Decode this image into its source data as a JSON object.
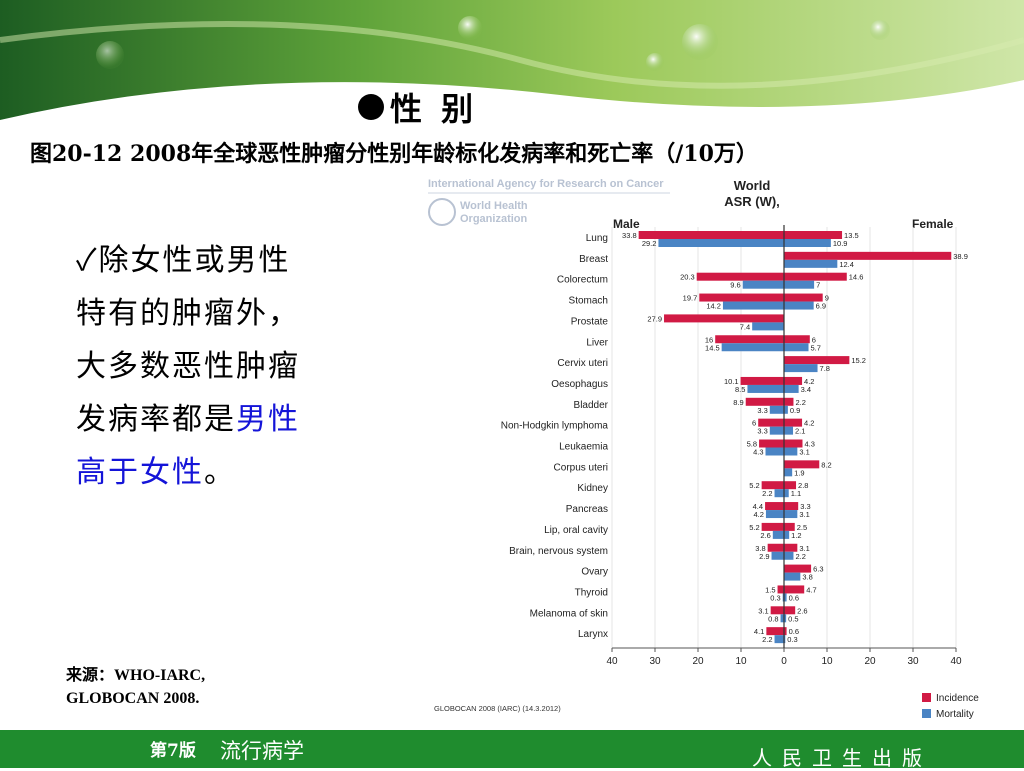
{
  "header": {
    "heading": "性 别",
    "figure_title": "图20-12 2008年全球恶性肿瘤分性别年龄标化发病率和死亡率（/10万）"
  },
  "bullet": {
    "check": "✓",
    "text_plain": "除女性或男性特有的肿瘤外，大多数恶性肿瘤发病率都是",
    "text_highlight": "男性高于女性",
    "text_end": "。"
  },
  "source": {
    "line1": "来源：WHO-IARC,",
    "line2": "GLOBOCAN 2008."
  },
  "footer": {
    "edition": "第7版",
    "subject": "流行病学",
    "publisher": "人民卫生出版"
  },
  "colors": {
    "incidence": "#d11a44",
    "mortality": "#4a84c4",
    "footer_green": "#1f8c2e",
    "highlight_blue": "#1414d8"
  },
  "chart_data": {
    "type": "bar",
    "orientation": "horizontal-butterfly",
    "logos": {
      "iarc": "International Agency for Research on Cancer",
      "who": "World Health Organization"
    },
    "header_lines": [
      "World",
      "ASR (W),"
    ],
    "left_label": "Male",
    "right_label": "Female",
    "xlim": [
      -40,
      40
    ],
    "x_ticks": [
      "40",
      "30",
      "20",
      "10",
      "0",
      "10",
      "20",
      "30",
      "40"
    ],
    "credit": "GLOBOCAN 2008 (IARC) (14.3.2012)",
    "legend": [
      {
        "label": "Incidence",
        "key": "incidence"
      },
      {
        "label": "Mortality",
        "key": "mortality"
      }
    ],
    "legend_position": "bottom-right",
    "categories": [
      "Lung",
      "Breast",
      "Colorectum",
      "Stomach",
      "Prostate",
      "Liver",
      "Cervix uteri",
      "Oesophagus",
      "Bladder",
      "Non-Hodgkin lymphoma",
      "Leukaemia",
      "Corpus uteri",
      "Kidney",
      "Pancreas",
      "Lip, oral cavity",
      "Brain, nervous system",
      "Ovary",
      "Thyroid",
      "Melanoma of skin",
      "Larynx"
    ],
    "series": [
      {
        "name": "Incidence",
        "side": "male",
        "values": [
          33.8,
          null,
          20.3,
          19.7,
          27.9,
          16,
          null,
          10.1,
          8.9,
          6,
          5.8,
          null,
          5.2,
          4.4,
          5.2,
          3.8,
          null,
          1.5,
          3.1,
          4.1
        ],
        "labels": [
          "33.8",
          "",
          "20.3",
          "19.7",
          "27.9",
          "16",
          "",
          "10.1",
          "8.9",
          "6",
          "5.8",
          "",
          "5.2",
          "4.4",
          "5.2",
          "3.8",
          "",
          "1.5",
          "3.1",
          "4.1"
        ]
      },
      {
        "name": "Mortality",
        "side": "male",
        "values": [
          29.2,
          null,
          9.6,
          14.2,
          7.4,
          14.5,
          null,
          8.5,
          3.3,
          3.3,
          4.3,
          null,
          2.2,
          4.2,
          2.6,
          2.9,
          null,
          0.3,
          0.8,
          2.2
        ],
        "labels": [
          "29.2",
          "",
          "9.6",
          "14.2",
          "7.4",
          "14.5",
          "",
          "8.5",
          "3.3",
          "3.3",
          "4.3",
          "",
          "2.2",
          "4.2",
          "2.6",
          "2.9",
          "",
          "0.3",
          "0.8",
          "2.2"
        ]
      },
      {
        "name": "Incidence",
        "side": "female",
        "values": [
          13.5,
          38.9,
          14.6,
          9,
          null,
          6,
          15.2,
          4.2,
          2.2,
          4.2,
          4.3,
          8.2,
          2.8,
          3.3,
          2.5,
          3.1,
          6.3,
          4.7,
          2.6,
          0.6
        ],
        "labels": [
          "13.5",
          "38.9",
          "14.6",
          "9",
          "",
          "6",
          "15.2",
          "4.2",
          "2.2",
          "4.2",
          "4.3",
          "8.2",
          "2.8",
          "3.3",
          "2.5",
          "3.1",
          "6.3",
          "4.7",
          "2.6",
          "0.6"
        ]
      },
      {
        "name": "Mortality",
        "side": "female",
        "values": [
          10.9,
          12.4,
          7,
          6.9,
          null,
          5.7,
          7.8,
          3.4,
          0.9,
          2.1,
          3.1,
          1.9,
          1.1,
          3.1,
          1.2,
          2.2,
          3.8,
          0.6,
          0.5,
          0.3
        ],
        "labels": [
          "10.9",
          "12.4",
          "7",
          "6.9",
          "",
          "5.7",
          "7.8",
          "3.4",
          "0.9",
          "2.1",
          "3.1",
          "1.9",
          "1.1",
          "3.1",
          "1.2",
          "2.2",
          "3.8",
          "0.6",
          "0.5",
          "0.3"
        ]
      }
    ]
  }
}
